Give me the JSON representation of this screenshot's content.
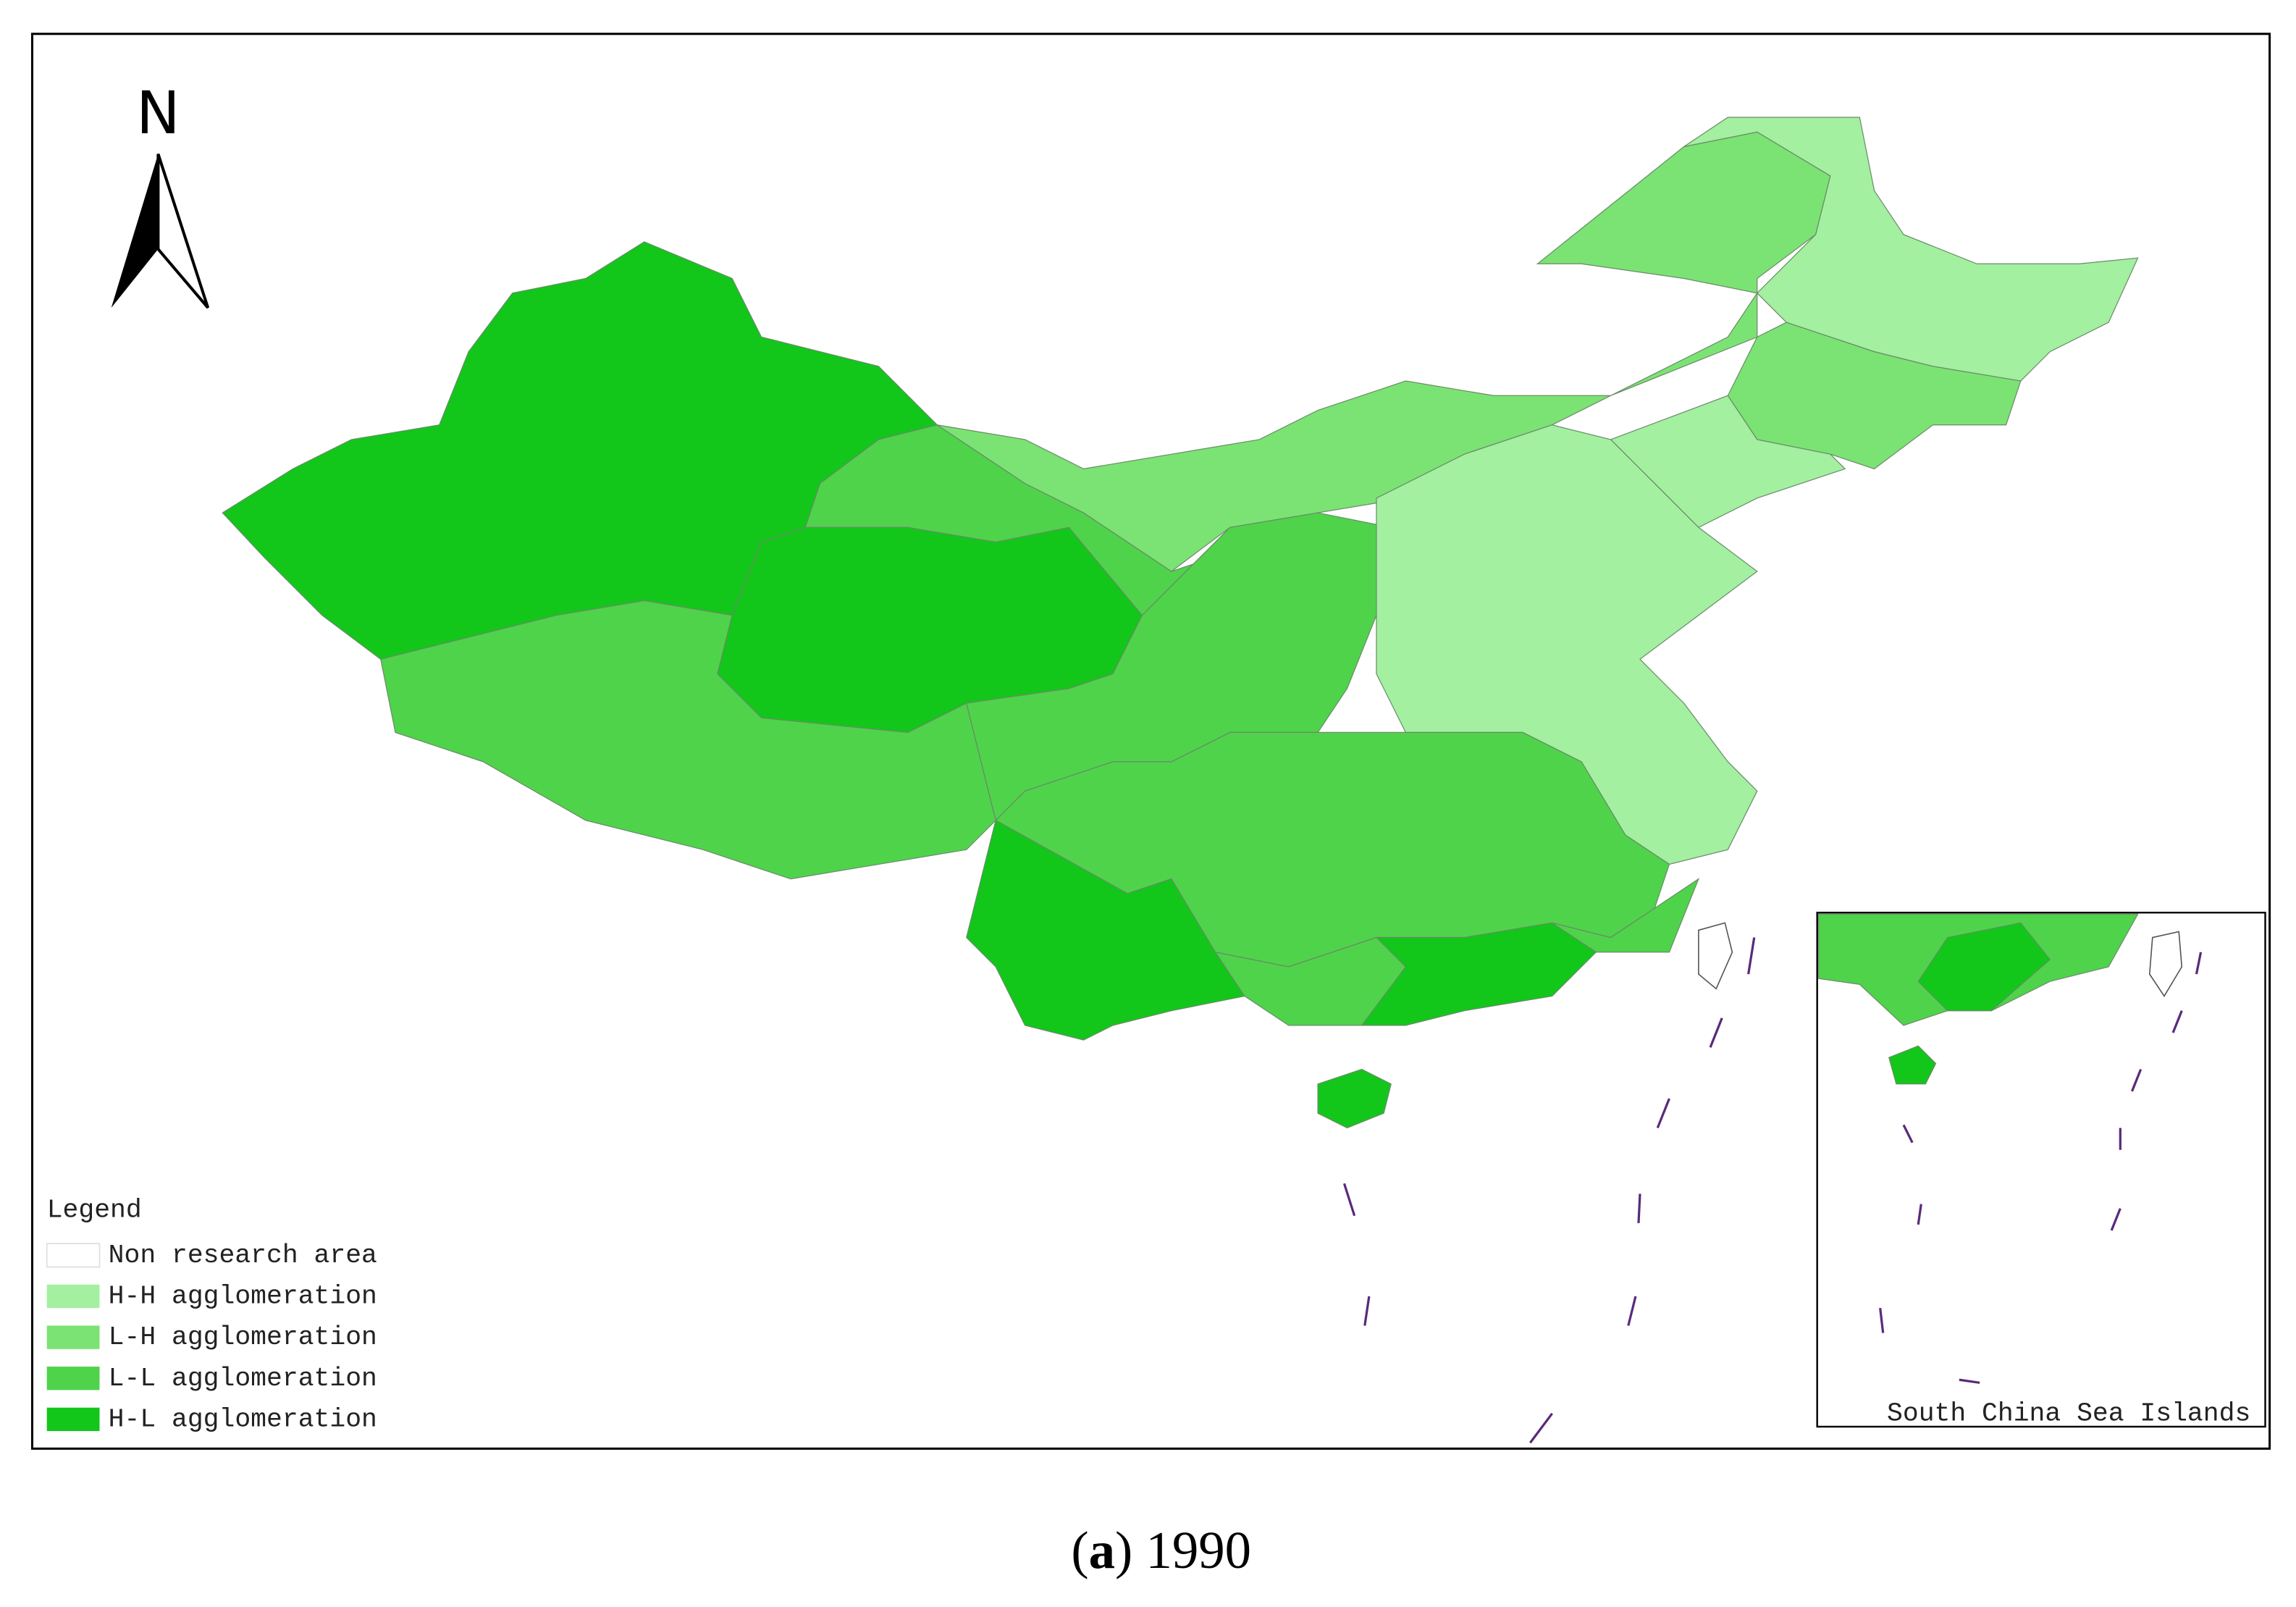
{
  "north_label": "N",
  "legend": {
    "title": "Legend",
    "items": [
      {
        "label": "Non research area",
        "color": "#ffffff"
      },
      {
        "label": "H-H agglomeration",
        "color": "#a3f0a0"
      },
      {
        "label": "L-H agglomeration",
        "color": "#7be373"
      },
      {
        "label": "L-L agglomeration",
        "color": "#4fd34a"
      },
      {
        "label": "H-L agglomeration",
        "color": "#12c61a"
      }
    ]
  },
  "inset_label": "South China Sea Islands",
  "caption": {
    "open": "(",
    "letter": "a",
    "rest": ") 1990"
  }
}
